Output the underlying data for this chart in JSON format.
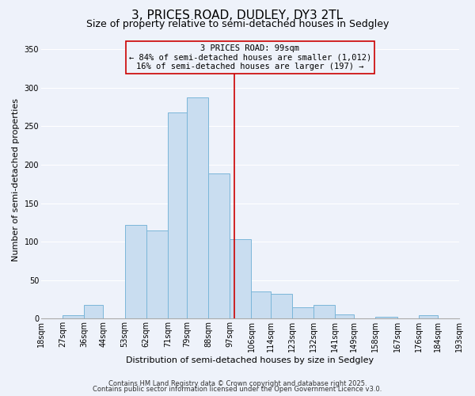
{
  "title1": "3, PRICES ROAD, DUDLEY, DY3 2TL",
  "title2": "Size of property relative to semi-detached houses in Sedgley",
  "xlabel": "Distribution of semi-detached houses by size in Sedgley",
  "ylabel": "Number of semi-detached properties",
  "bin_labels": [
    "18sqm",
    "27sqm",
    "36sqm",
    "44sqm",
    "53sqm",
    "62sqm",
    "71sqm",
    "79sqm",
    "88sqm",
    "97sqm",
    "106sqm",
    "114sqm",
    "123sqm",
    "132sqm",
    "141sqm",
    "149sqm",
    "158sqm",
    "167sqm",
    "176sqm",
    "184sqm",
    "193sqm"
  ],
  "bin_edges": [
    18,
    27,
    36,
    44,
    53,
    62,
    71,
    79,
    88,
    97,
    106,
    114,
    123,
    132,
    141,
    149,
    158,
    167,
    176,
    184,
    193
  ],
  "bar_heights": [
    0,
    5,
    18,
    0,
    122,
    115,
    268,
    287,
    189,
    103,
    35,
    32,
    15,
    18,
    6,
    0,
    3,
    0,
    5,
    0
  ],
  "bar_color": "#c9ddf0",
  "bar_edgecolor": "#7ab6d9",
  "annotation_line1": "3 PRICES ROAD: 99sqm",
  "annotation_line2": "← 84% of semi-detached houses are smaller (1,012)",
  "annotation_line3": "16% of semi-detached houses are larger (197) →",
  "vline_x": 99,
  "vline_color": "#cc0000",
  "box_edgecolor": "#cc0000",
  "ylim": [
    0,
    360
  ],
  "yticks": [
    0,
    50,
    100,
    150,
    200,
    250,
    300,
    350
  ],
  "footer1": "Contains HM Land Registry data © Crown copyright and database right 2025.",
  "footer2": "Contains public sector information licensed under the Open Government Licence v3.0.",
  "bg_color": "#eef2fa",
  "grid_color": "#ffffff",
  "title1_fontsize": 11,
  "title2_fontsize": 9,
  "axis_label_fontsize": 8,
  "tick_fontsize": 7,
  "annot_fontsize": 7.5,
  "footer_fontsize": 6
}
